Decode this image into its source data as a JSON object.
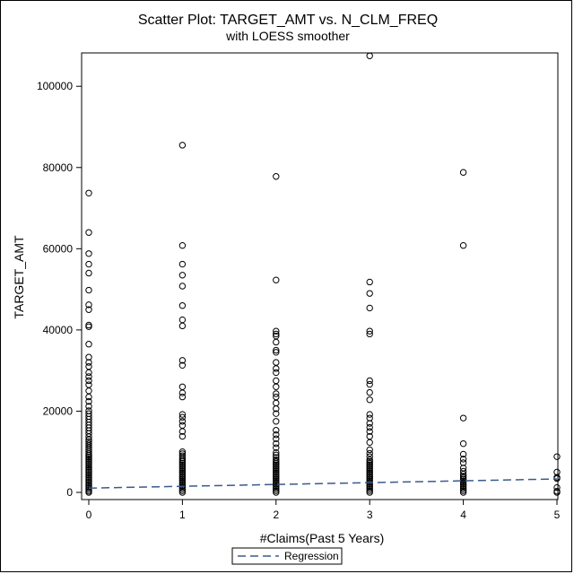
{
  "chart_data": {
    "type": "scatter",
    "title": "Scatter Plot: TARGET_AMT vs. N_CLM_FREQ",
    "subtitle": "with LOESS smoother",
    "xlabel": "#Claims(Past 5 Years)",
    "ylabel": "TARGET_AMT",
    "xlim": [
      0,
      5
    ],
    "ylim": [
      0,
      108000
    ],
    "x_ticks": [
      0,
      1,
      2,
      3,
      4,
      5
    ],
    "y_ticks": [
      0,
      20000,
      40000,
      60000,
      80000,
      100000
    ],
    "grid": false,
    "legend_position": "bottom",
    "colors": {
      "points": "#000000",
      "regression": "#3a5a8c"
    },
    "series": [
      {
        "kind": "points",
        "points": [
          {
            "x": 0,
            "y": 0
          },
          {
            "x": 0,
            "y": 300
          },
          {
            "x": 0,
            "y": 700
          },
          {
            "x": 0,
            "y": 1100
          },
          {
            "x": 0,
            "y": 1500
          },
          {
            "x": 0,
            "y": 1900
          },
          {
            "x": 0,
            "y": 2300
          },
          {
            "x": 0,
            "y": 2700
          },
          {
            "x": 0,
            "y": 3100
          },
          {
            "x": 0,
            "y": 3500
          },
          {
            "x": 0,
            "y": 3900
          },
          {
            "x": 0,
            "y": 4300
          },
          {
            "x": 0,
            "y": 4700
          },
          {
            "x": 0,
            "y": 5100
          },
          {
            "x": 0,
            "y": 5500
          },
          {
            "x": 0,
            "y": 5900
          },
          {
            "x": 0,
            "y": 6300
          },
          {
            "x": 0,
            "y": 6700
          },
          {
            "x": 0,
            "y": 7100
          },
          {
            "x": 0,
            "y": 7500
          },
          {
            "x": 0,
            "y": 7900
          },
          {
            "x": 0,
            "y": 8300
          },
          {
            "x": 0,
            "y": 8700
          },
          {
            "x": 0,
            "y": 9100
          },
          {
            "x": 0,
            "y": 9500
          },
          {
            "x": 0,
            "y": 10000
          },
          {
            "x": 0,
            "y": 10500
          },
          {
            "x": 0,
            "y": 11000
          },
          {
            "x": 0,
            "y": 11500
          },
          {
            "x": 0,
            "y": 12000
          },
          {
            "x": 0,
            "y": 12500
          },
          {
            "x": 0,
            "y": 13000
          },
          {
            "x": 0,
            "y": 13700
          },
          {
            "x": 0,
            "y": 14500
          },
          {
            "x": 0,
            "y": 15200
          },
          {
            "x": 0,
            "y": 15900
          },
          {
            "x": 0,
            "y": 16600
          },
          {
            "x": 0,
            "y": 17300
          },
          {
            "x": 0,
            "y": 18000
          },
          {
            "x": 0,
            "y": 18700
          },
          {
            "x": 0,
            "y": 19400
          },
          {
            "x": 0,
            "y": 20100
          },
          {
            "x": 0,
            "y": 21200
          },
          {
            "x": 0,
            "y": 22400
          },
          {
            "x": 0,
            "y": 23500
          },
          {
            "x": 0,
            "y": 25000
          },
          {
            "x": 0,
            "y": 26500
          },
          {
            "x": 0,
            "y": 27500
          },
          {
            "x": 0,
            "y": 28500
          },
          {
            "x": 0,
            "y": 29500
          },
          {
            "x": 0,
            "y": 31000
          },
          {
            "x": 0,
            "y": 32000
          },
          {
            "x": 0,
            "y": 33300
          },
          {
            "x": 0,
            "y": 36500
          },
          {
            "x": 0,
            "y": 40800
          },
          {
            "x": 0,
            "y": 41200
          },
          {
            "x": 0,
            "y": 45000
          },
          {
            "x": 0,
            "y": 46200
          },
          {
            "x": 0,
            "y": 49800
          },
          {
            "x": 0,
            "y": 54000
          },
          {
            "x": 0,
            "y": 56200
          },
          {
            "x": 0,
            "y": 58800
          },
          {
            "x": 0,
            "y": 64000
          },
          {
            "x": 0,
            "y": 73700
          },
          {
            "x": 1,
            "y": 0
          },
          {
            "x": 1,
            "y": 400
          },
          {
            "x": 1,
            "y": 800
          },
          {
            "x": 1,
            "y": 1200
          },
          {
            "x": 1,
            "y": 1600
          },
          {
            "x": 1,
            "y": 2000
          },
          {
            "x": 1,
            "y": 2400
          },
          {
            "x": 1,
            "y": 2800
          },
          {
            "x": 1,
            "y": 3200
          },
          {
            "x": 1,
            "y": 3600
          },
          {
            "x": 1,
            "y": 4000
          },
          {
            "x": 1,
            "y": 4400
          },
          {
            "x": 1,
            "y": 4800
          },
          {
            "x": 1,
            "y": 5200
          },
          {
            "x": 1,
            "y": 5600
          },
          {
            "x": 1,
            "y": 6000
          },
          {
            "x": 1,
            "y": 6400
          },
          {
            "x": 1,
            "y": 6800
          },
          {
            "x": 1,
            "y": 7200
          },
          {
            "x": 1,
            "y": 7600
          },
          {
            "x": 1,
            "y": 8000
          },
          {
            "x": 1,
            "y": 8500
          },
          {
            "x": 1,
            "y": 9000
          },
          {
            "x": 1,
            "y": 9500
          },
          {
            "x": 1,
            "y": 10000
          },
          {
            "x": 1,
            "y": 13800
          },
          {
            "x": 1,
            "y": 15000
          },
          {
            "x": 1,
            "y": 16500
          },
          {
            "x": 1,
            "y": 17500
          },
          {
            "x": 1,
            "y": 18500
          },
          {
            "x": 1,
            "y": 19200
          },
          {
            "x": 1,
            "y": 23500
          },
          {
            "x": 1,
            "y": 24500
          },
          {
            "x": 1,
            "y": 26000
          },
          {
            "x": 1,
            "y": 31300
          },
          {
            "x": 1,
            "y": 32500
          },
          {
            "x": 1,
            "y": 41000
          },
          {
            "x": 1,
            "y": 42500
          },
          {
            "x": 1,
            "y": 46000
          },
          {
            "x": 1,
            "y": 50800
          },
          {
            "x": 1,
            "y": 53500
          },
          {
            "x": 1,
            "y": 56200
          },
          {
            "x": 1,
            "y": 60800
          },
          {
            "x": 1,
            "y": 85500
          },
          {
            "x": 2,
            "y": 0
          },
          {
            "x": 2,
            "y": 400
          },
          {
            "x": 2,
            "y": 800
          },
          {
            "x": 2,
            "y": 1200
          },
          {
            "x": 2,
            "y": 1600
          },
          {
            "x": 2,
            "y": 2000
          },
          {
            "x": 2,
            "y": 2400
          },
          {
            "x": 2,
            "y": 2800
          },
          {
            "x": 2,
            "y": 3200
          },
          {
            "x": 2,
            "y": 3600
          },
          {
            "x": 2,
            "y": 4000
          },
          {
            "x": 2,
            "y": 4400
          },
          {
            "x": 2,
            "y": 4800
          },
          {
            "x": 2,
            "y": 5200
          },
          {
            "x": 2,
            "y": 5600
          },
          {
            "x": 2,
            "y": 6000
          },
          {
            "x": 2,
            "y": 6400
          },
          {
            "x": 2,
            "y": 6800
          },
          {
            "x": 2,
            "y": 7200
          },
          {
            "x": 2,
            "y": 7600
          },
          {
            "x": 2,
            "y": 8000
          },
          {
            "x": 2,
            "y": 8600
          },
          {
            "x": 2,
            "y": 9200
          },
          {
            "x": 2,
            "y": 9800
          },
          {
            "x": 2,
            "y": 11000
          },
          {
            "x": 2,
            "y": 12000
          },
          {
            "x": 2,
            "y": 13200
          },
          {
            "x": 2,
            "y": 14200
          },
          {
            "x": 2,
            "y": 15300
          },
          {
            "x": 2,
            "y": 17500
          },
          {
            "x": 2,
            "y": 19400
          },
          {
            "x": 2,
            "y": 20600
          },
          {
            "x": 2,
            "y": 22000
          },
          {
            "x": 2,
            "y": 23500
          },
          {
            "x": 2,
            "y": 24300
          },
          {
            "x": 2,
            "y": 26000
          },
          {
            "x": 2,
            "y": 27500
          },
          {
            "x": 2,
            "y": 29500
          },
          {
            "x": 2,
            "y": 30500
          },
          {
            "x": 2,
            "y": 32000
          },
          {
            "x": 2,
            "y": 34500
          },
          {
            "x": 2,
            "y": 35000
          },
          {
            "x": 2,
            "y": 37000
          },
          {
            "x": 2,
            "y": 38500
          },
          {
            "x": 2,
            "y": 39000
          },
          {
            "x": 2,
            "y": 39700
          },
          {
            "x": 2,
            "y": 52300
          },
          {
            "x": 2,
            "y": 77800
          },
          {
            "x": 3,
            "y": 0
          },
          {
            "x": 3,
            "y": 400
          },
          {
            "x": 3,
            "y": 800
          },
          {
            "x": 3,
            "y": 1200
          },
          {
            "x": 3,
            "y": 1600
          },
          {
            "x": 3,
            "y": 2000
          },
          {
            "x": 3,
            "y": 2400
          },
          {
            "x": 3,
            "y": 2800
          },
          {
            "x": 3,
            "y": 3200
          },
          {
            "x": 3,
            "y": 3600
          },
          {
            "x": 3,
            "y": 4000
          },
          {
            "x": 3,
            "y": 4400
          },
          {
            "x": 3,
            "y": 4800
          },
          {
            "x": 3,
            "y": 5200
          },
          {
            "x": 3,
            "y": 5600
          },
          {
            "x": 3,
            "y": 6000
          },
          {
            "x": 3,
            "y": 6400
          },
          {
            "x": 3,
            "y": 6800
          },
          {
            "x": 3,
            "y": 7200
          },
          {
            "x": 3,
            "y": 7600
          },
          {
            "x": 3,
            "y": 8000
          },
          {
            "x": 3,
            "y": 8800
          },
          {
            "x": 3,
            "y": 9600
          },
          {
            "x": 3,
            "y": 10500
          },
          {
            "x": 3,
            "y": 12300
          },
          {
            "x": 3,
            "y": 13800
          },
          {
            "x": 3,
            "y": 15000
          },
          {
            "x": 3,
            "y": 16000
          },
          {
            "x": 3,
            "y": 17000
          },
          {
            "x": 3,
            "y": 18300
          },
          {
            "x": 3,
            "y": 19200
          },
          {
            "x": 3,
            "y": 22800
          },
          {
            "x": 3,
            "y": 24600
          },
          {
            "x": 3,
            "y": 26600
          },
          {
            "x": 3,
            "y": 27500
          },
          {
            "x": 3,
            "y": 39000
          },
          {
            "x": 3,
            "y": 39700
          },
          {
            "x": 3,
            "y": 45400
          },
          {
            "x": 3,
            "y": 49000
          },
          {
            "x": 3,
            "y": 51800
          },
          {
            "x": 3,
            "y": 107500
          },
          {
            "x": 4,
            "y": 0
          },
          {
            "x": 4,
            "y": 400
          },
          {
            "x": 4,
            "y": 800
          },
          {
            "x": 4,
            "y": 1200
          },
          {
            "x": 4,
            "y": 1600
          },
          {
            "x": 4,
            "y": 2000
          },
          {
            "x": 4,
            "y": 2400
          },
          {
            "x": 4,
            "y": 2800
          },
          {
            "x": 4,
            "y": 3200
          },
          {
            "x": 4,
            "y": 3600
          },
          {
            "x": 4,
            "y": 4000
          },
          {
            "x": 4,
            "y": 4500
          },
          {
            "x": 4,
            "y": 5200
          },
          {
            "x": 4,
            "y": 6000
          },
          {
            "x": 4,
            "y": 7300
          },
          {
            "x": 4,
            "y": 8200
          },
          {
            "x": 4,
            "y": 9400
          },
          {
            "x": 4,
            "y": 12000
          },
          {
            "x": 4,
            "y": 18300
          },
          {
            "x": 4,
            "y": 60800
          },
          {
            "x": 4,
            "y": 78800
          },
          {
            "x": 5,
            "y": 0
          },
          {
            "x": 5,
            "y": 300
          },
          {
            "x": 5,
            "y": 1200
          },
          {
            "x": 5,
            "y": 3400
          },
          {
            "x": 5,
            "y": 3700
          },
          {
            "x": 5,
            "y": 5000
          },
          {
            "x": 5,
            "y": 8800
          }
        ]
      },
      {
        "kind": "line",
        "name": "Regression",
        "x": [
          0,
          5
        ],
        "y": [
          1050,
          3300
        ]
      }
    ]
  }
}
